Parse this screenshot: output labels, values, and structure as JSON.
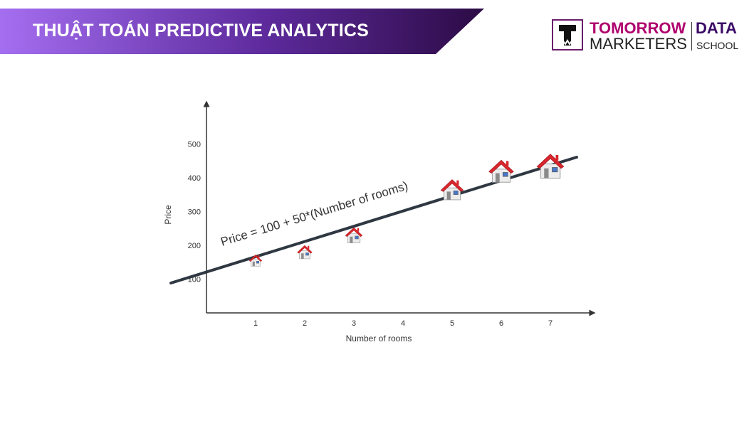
{
  "header": {
    "title": "THUẬT TOÁN PREDICTIVE ANALYTICS",
    "accent_start": "#a46ef0",
    "accent_end": "#2c0b45"
  },
  "logo": {
    "line1": "TOMORROW",
    "line2": "MARKETERS",
    "line3": "DATA",
    "line4": "SCHOOL"
  },
  "chart_data": {
    "type": "scatter",
    "xlabel": "Number of rooms",
    "ylabel": "Price",
    "x_ticks": [
      1,
      2,
      3,
      4,
      5,
      6,
      7
    ],
    "y_ticks": [
      100,
      200,
      300,
      400,
      500
    ],
    "points": [
      {
        "x": 1,
        "y": 160
      },
      {
        "x": 2,
        "y": 185
      },
      {
        "x": 3,
        "y": 235
      },
      {
        "x": 5,
        "y": 370
      },
      {
        "x": 6,
        "y": 425
      },
      {
        "x": 7,
        "y": 440
      }
    ],
    "marker_icon": "house-icon",
    "trend_line": {
      "equation": "Price = 100 + 50*(Number of rooms)"
    },
    "colors": {
      "roof": "#d9262c",
      "line": "#2f3842"
    }
  }
}
